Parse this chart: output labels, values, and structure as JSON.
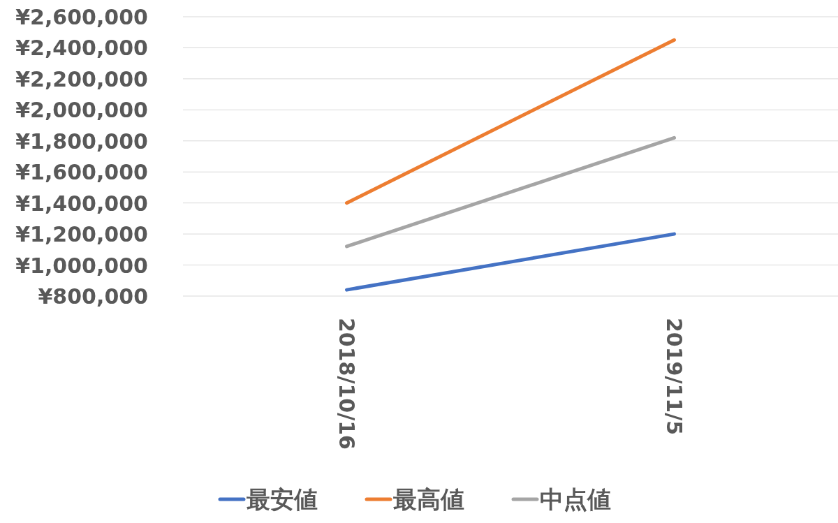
{
  "chart_data": {
    "type": "line",
    "categories": [
      "2018/10/16",
      "2019/11/5"
    ],
    "series": [
      {
        "name": "最安値",
        "color": "#4472c4",
        "values": [
          840000,
          1200000
        ]
      },
      {
        "name": "最高値",
        "color": "#ed7d31",
        "values": [
          1400000,
          2450000
        ]
      },
      {
        "name": "中点値",
        "color": "#a5a5a5",
        "values": [
          1120000,
          1820000
        ]
      }
    ],
    "ylim": [
      800000,
      2600000
    ],
    "yticks": [
      {
        "value": 800000,
        "label": "¥800,000"
      },
      {
        "value": 1000000,
        "label": "¥1,000,000"
      },
      {
        "value": 1200000,
        "label": "¥1,200,000"
      },
      {
        "value": 1400000,
        "label": "¥1,400,000"
      },
      {
        "value": 1600000,
        "label": "¥1,600,000"
      },
      {
        "value": 1800000,
        "label": "¥1,800,000"
      },
      {
        "value": 2000000,
        "label": "¥2,000,000"
      },
      {
        "value": 2200000,
        "label": "¥2,200,000"
      },
      {
        "value": 2400000,
        "label": "¥2,400,000"
      },
      {
        "value": 2600000,
        "label": "¥2,600,000"
      }
    ],
    "grid": "y",
    "legend": "bottom"
  }
}
